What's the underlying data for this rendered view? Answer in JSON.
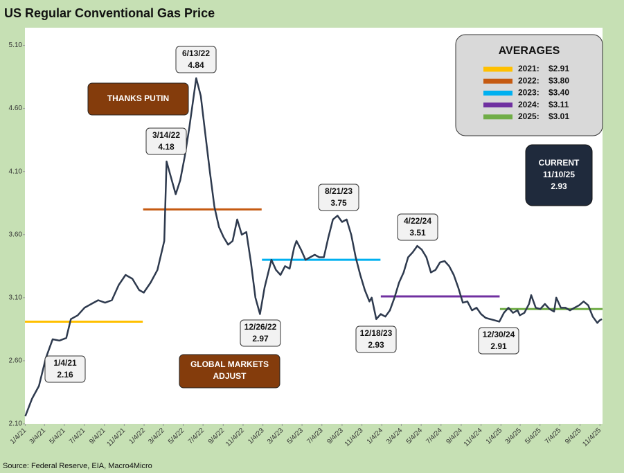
{
  "chart_data": {
    "type": "line",
    "title": "US Regular Conventional Gas Price",
    "source": "Source: Federal Reserve, EIA, Macro4Micro",
    "color": "#2e3a4e",
    "xlim": [
      "1/3/21",
      "11/12/25"
    ],
    "ylim": [
      2.1,
      5.24
    ],
    "yticks": [
      {
        "value": 2.1,
        "label": "2.10"
      },
      {
        "value": 2.6,
        "label": "2.60"
      },
      {
        "value": 3.1,
        "label": "3.10"
      },
      {
        "value": 3.6,
        "label": "3.60"
      },
      {
        "value": 4.1,
        "label": "4.10"
      },
      {
        "value": 4.6,
        "label": "4.60"
      },
      {
        "value": 5.1,
        "label": "5.10"
      }
    ],
    "xticks": [
      "1/4/21",
      "3/4/21",
      "5/4/21",
      "7/4/21",
      "9/4/21",
      "11/4/21",
      "1/4/22",
      "3/4/22",
      "5/4/22",
      "7/4/22",
      "9/4/22",
      "11/4/22",
      "1/4/23",
      "3/4/23",
      "5/4/23",
      "7/4/23",
      "9/4/23",
      "11/4/23",
      "1/4/24",
      "3/4/24",
      "5/4/24",
      "7/4/24",
      "9/4/24",
      "11/4/24",
      "1/4/25",
      "3/4/25",
      "5/4/25",
      "7/4/25",
      "9/4/25",
      "11/4/25"
    ],
    "x": [
      "1/4/21",
      "1/25/21",
      "2/15/21",
      "3/8/21",
      "3/29/21",
      "4/19/21",
      "5/10/21",
      "5/24/21",
      "6/14/21",
      "7/5/21",
      "7/26/21",
      "8/16/21",
      "9/6/21",
      "9/27/21",
      "10/18/21",
      "11/8/21",
      "11/29/21",
      "12/20/21",
      "1/3/22",
      "1/24/22",
      "2/14/22",
      "3/7/22",
      "3/14/22",
      "3/28/22",
      "4/11/22",
      "4/25/22",
      "5/9/22",
      "5/23/22",
      "6/13/22",
      "6/27/22",
      "7/11/22",
      "7/25/22",
      "8/8/22",
      "8/22/22",
      "9/5/22",
      "9/19/22",
      "10/3/22",
      "10/17/22",
      "10/31/22",
      "11/14/22",
      "11/28/22",
      "12/12/22",
      "12/26/22",
      "1/9/23",
      "1/30/23",
      "2/13/23",
      "2/27/23",
      "3/13/23",
      "3/27/23",
      "4/10/23",
      "4/17/23",
      "5/1/23",
      "5/15/23",
      "5/29/23",
      "6/12/23",
      "6/26/23",
      "7/10/23",
      "7/24/23",
      "8/7/23",
      "8/21/23",
      "9/4/23",
      "9/18/23",
      "10/2/23",
      "10/16/23",
      "10/30/23",
      "11/13/23",
      "11/27/23",
      "12/4/23",
      "12/18/23",
      "1/1/24",
      "1/15/24",
      "1/29/24",
      "2/12/24",
      "2/26/24",
      "3/11/24",
      "3/25/24",
      "4/8/24",
      "4/22/24",
      "5/6/24",
      "5/20/24",
      "6/3/24",
      "6/17/24",
      "7/1/24",
      "7/15/24",
      "7/29/24",
      "8/12/24",
      "8/26/24",
      "9/9/24",
      "9/23/24",
      "10/7/24",
      "10/21/24",
      "11/4/24",
      "11/18/24",
      "12/2/24",
      "12/16/24",
      "12/30/24",
      "1/13/25",
      "1/27/25",
      "2/10/25",
      "2/24/25",
      "3/3/25",
      "3/17/25",
      "3/31/25",
      "4/7/25",
      "4/21/25",
      "5/5/25",
      "5/19/25",
      "6/2/25",
      "6/16/25",
      "6/23/25",
      "7/7/25",
      "7/21/25",
      "8/4/25",
      "8/18/25",
      "9/1/25",
      "9/15/25",
      "9/29/25",
      "10/13/25",
      "10/27/25",
      "11/3/25",
      "11/10/25"
    ],
    "values": [
      2.16,
      2.3,
      2.4,
      2.62,
      2.77,
      2.76,
      2.78,
      2.93,
      2.96,
      3.02,
      3.05,
      3.08,
      3.06,
      3.08,
      3.2,
      3.28,
      3.25,
      3.16,
      3.14,
      3.22,
      3.32,
      3.55,
      4.18,
      4.05,
      3.92,
      4.03,
      4.22,
      4.45,
      4.84,
      4.7,
      4.4,
      4.1,
      3.82,
      3.66,
      3.58,
      3.52,
      3.55,
      3.72,
      3.6,
      3.62,
      3.38,
      3.1,
      2.97,
      3.18,
      3.4,
      3.32,
      3.28,
      3.35,
      3.33,
      3.5,
      3.55,
      3.48,
      3.4,
      3.42,
      3.44,
      3.42,
      3.42,
      3.58,
      3.72,
      3.75,
      3.7,
      3.72,
      3.6,
      3.42,
      3.28,
      3.16,
      3.07,
      3.1,
      2.93,
      2.97,
      2.95,
      3.0,
      3.1,
      3.22,
      3.3,
      3.42,
      3.46,
      3.51,
      3.48,
      3.42,
      3.3,
      3.32,
      3.38,
      3.39,
      3.35,
      3.28,
      3.18,
      3.06,
      3.07,
      3.0,
      3.02,
      2.97,
      2.94,
      2.93,
      2.92,
      2.91,
      2.98,
      3.02,
      2.98,
      3.0,
      2.96,
      2.98,
      3.05,
      3.12,
      3.02,
      3.01,
      3.05,
      3.01,
      2.99,
      3.1,
      3.02,
      3.02,
      3.0,
      3.02,
      3.04,
      3.07,
      3.04,
      2.95,
      2.9,
      2.92,
      2.93
    ],
    "averages": {
      "title": "AVERAGES",
      "items": [
        {
          "label": "2021:",
          "value": 2.91,
          "value_label": "$2.91",
          "color": "#ffc000"
        },
        {
          "label": "2022:",
          "value": 3.8,
          "value_label": "$3.80",
          "color": "#c55a11"
        },
        {
          "label": "2023:",
          "value": 3.4,
          "value_label": "$3.40",
          "color": "#00b0f0"
        },
        {
          "label": "2024:",
          "value": 3.11,
          "value_label": "$3.11",
          "color": "#7030a0"
        },
        {
          "label": "2025:",
          "value": 3.01,
          "value_label": "$3.01",
          "color": "#70ad47"
        }
      ]
    },
    "annotations": [
      {
        "x": "1/4/21",
        "value": 2.16
      },
      {
        "x": "3/14/22",
        "value": 4.18
      },
      {
        "x": "6/13/22",
        "value": 4.84
      },
      {
        "x": "12/26/22",
        "value": 2.97
      },
      {
        "x": "8/21/23",
        "value": 3.75
      },
      {
        "x": "12/18/23",
        "value": 2.93
      },
      {
        "x": "4/22/24",
        "value": 3.51
      },
      {
        "x": "12/30/24",
        "value": 2.91
      }
    ],
    "current": {
      "label": "CURRENT",
      "x": "11/10/25",
      "value": 2.93
    },
    "notes": [
      "THANKS PUTIN",
      "GLOBAL MARKETS ADJUST"
    ]
  }
}
